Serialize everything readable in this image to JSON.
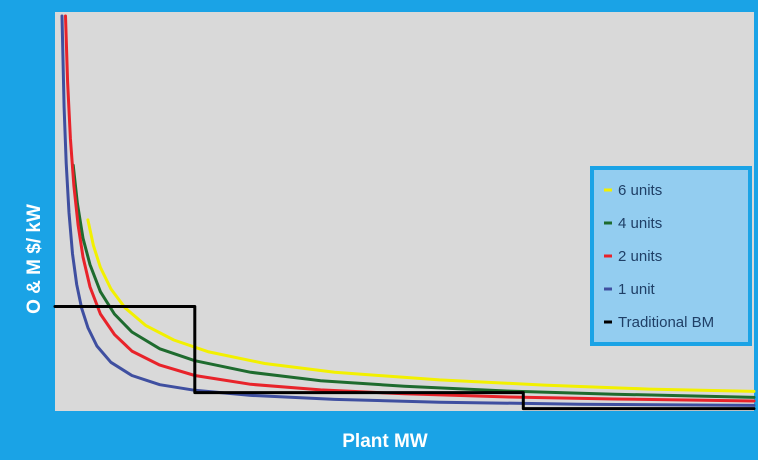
{
  "chart_data": {
    "type": "line",
    "title": "",
    "xlabel": "Plant MW",
    "ylabel": "O & M $/ kW",
    "xlim": [
      0,
      100
    ],
    "ylim": [
      0,
      100
    ],
    "axis_ticks_shown": false,
    "grid": false,
    "legend_position": "right",
    "plot_background": "#d9d9d9",
    "page_background": "#1aa3e6",
    "legend_background": "#93cdf0",
    "series": [
      {
        "name": "6 units",
        "color": "#f2f000",
        "x": [
          4.7,
          5.5,
          6.5,
          8,
          10,
          13,
          17,
          22,
          30,
          40,
          55,
          70,
          85,
          100
        ],
        "y": [
          47.9,
          41.5,
          36.0,
          30.6,
          25.9,
          21.4,
          17.8,
          14.8,
          11.9,
          9.7,
          7.8,
          6.5,
          5.5,
          4.9
        ]
      },
      {
        "name": "4 units",
        "color": "#1e6b2e",
        "x": [
          2.6,
          3.2,
          4,
          5,
          6.5,
          8.5,
          11,
          15,
          20,
          28,
          38,
          50,
          65,
          80,
          100
        ],
        "y": [
          61.6,
          52.0,
          43.3,
          36.7,
          29.9,
          24.3,
          19.8,
          15.6,
          12.6,
          9.7,
          7.6,
          6.2,
          5.0,
          4.2,
          3.4
        ]
      },
      {
        "name": "2 units",
        "color": "#e8232a",
        "x": [
          1.5,
          1.8,
          2.2,
          2.7,
          3.3,
          4,
          5,
          6.5,
          8.5,
          11,
          15,
          20,
          28,
          38,
          50,
          65,
          80,
          100
        ],
        "y": [
          99.0,
          82.5,
          68.3,
          56.4,
          46.6,
          38.6,
          31.1,
          24.3,
          19.2,
          15.0,
          11.5,
          8.9,
          6.7,
          5.3,
          4.3,
          3.5,
          3.0,
          2.5
        ]
      },
      {
        "name": "1 unit",
        "color": "#3f4fa0",
        "x": [
          1.0,
          1.3,
          1.6,
          2.0,
          2.5,
          3.1,
          3.8,
          4.7,
          6,
          8,
          11,
          15,
          20,
          28,
          40,
          55,
          75,
          100
        ],
        "y": [
          99.0,
          76.1,
          62.1,
          49.7,
          39.4,
          31.7,
          25.8,
          20.9,
          16.3,
          12.2,
          8.9,
          6.6,
          5.2,
          3.9,
          2.9,
          2.2,
          1.7,
          1.4
        ]
      },
      {
        "name": "Traditional BM",
        "color": "#000000",
        "x": [
          0,
          20,
          20,
          67,
          67,
          100
        ],
        "y": [
          26.2,
          26.2,
          4.6,
          4.6,
          0.6,
          0.6
        ]
      }
    ]
  }
}
